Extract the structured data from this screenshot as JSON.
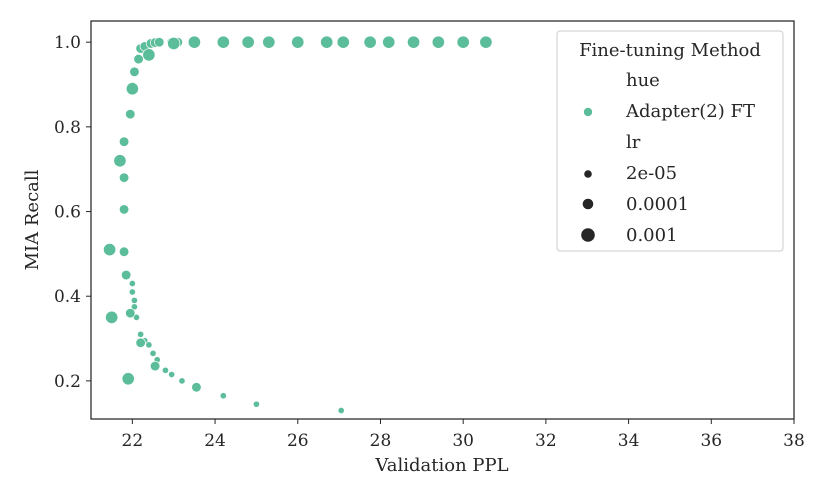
{
  "chart_data": {
    "type": "scatter",
    "xlabel": "Validation PPL",
    "ylabel": "MIA Recall",
    "xlim": [
      21.0,
      38.0
    ],
    "ylim": [
      0.11,
      1.05
    ],
    "xticks": [
      22,
      24,
      26,
      28,
      30,
      32,
      34,
      36,
      38
    ],
    "yticks": [
      0.2,
      0.4,
      0.6,
      0.8,
      1.0
    ],
    "xtick_labels": [
      "22",
      "24",
      "26",
      "28",
      "30",
      "32",
      "34",
      "36",
      "38"
    ],
    "ytick_labels": [
      "0.2",
      "0.4",
      "0.6",
      "0.8",
      "1.0"
    ],
    "grid": false,
    "marker_color": "#5bbd99",
    "legend": {
      "title": "Fine-tuning Method",
      "placement": "top-right",
      "hue_header": "hue",
      "hue_entries": [
        "Adapter(2) FT"
      ],
      "size_header": "lr",
      "size_entries": [
        "2e-05",
        "0.0001",
        "0.001"
      ]
    },
    "series": [
      {
        "lr": "2e-05",
        "x": [
          22.0,
          22.0,
          22.05,
          22.05,
          22.1,
          22.2,
          22.3,
          22.4,
          22.5,
          22.6,
          22.8,
          22.95,
          23.2,
          23.6,
          24.2,
          25.0,
          27.05
        ],
        "y": [
          0.43,
          0.41,
          0.39,
          0.375,
          0.35,
          0.31,
          0.295,
          0.285,
          0.265,
          0.25,
          0.225,
          0.215,
          0.2,
          0.185,
          0.165,
          0.145,
          0.13
        ]
      },
      {
        "lr": "0.0001",
        "x": [
          21.8,
          21.8,
          21.8,
          21.85,
          21.95,
          22.0,
          22.05,
          22.15,
          22.2,
          22.3,
          22.45,
          22.55,
          22.65,
          22.95,
          23.1,
          21.8,
          21.85,
          21.95,
          22.2,
          22.55,
          23.55
        ],
        "y": [
          0.765,
          0.68,
          0.605,
          0.45,
          0.83,
          0.895,
          0.93,
          0.96,
          0.985,
          0.99,
          0.997,
          0.999,
          1.0,
          1.0,
          1.0,
          0.505,
          0.45,
          0.36,
          0.29,
          0.235,
          0.185
        ]
      },
      {
        "lr": "0.001",
        "x": [
          21.45,
          21.5,
          21.7,
          21.9,
          22.0,
          22.4,
          23.0,
          23.5,
          24.2,
          24.8,
          25.3,
          26.0,
          26.7,
          27.1,
          27.75,
          28.2,
          28.8,
          29.4,
          30.0,
          30.55
        ],
        "y": [
          0.51,
          0.35,
          0.72,
          0.205,
          0.89,
          0.97,
          0.997,
          1.0,
          1.0,
          1.0,
          1.0,
          1.0,
          1.0,
          1.0,
          1.0,
          1.0,
          1.0,
          1.0,
          1.0,
          1.0
        ]
      }
    ]
  }
}
